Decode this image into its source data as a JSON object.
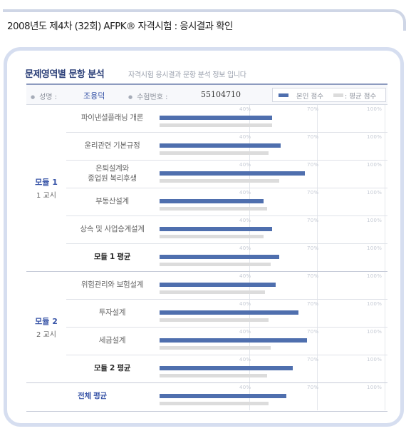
{
  "header": {
    "title": "2008년도 제4차 (32회) AFPK® 자격시험 : 응시결과 확인"
  },
  "section": {
    "title": "문제영역별 문항 분석",
    "subtitle": "자격시험 응시결과 문항 분석 정보 입니다"
  },
  "info": {
    "name_label": "성명 :",
    "name_value": "조용덕",
    "id_label": "수험번호 :",
    "id_value": "55104710",
    "legend_self": "본인 점수",
    "legend_avg": ": 평균 점수"
  },
  "colors": {
    "self_bar": "#4f6fae",
    "avg_bar": "#dcdcdc",
    "accent": "#3a56a8"
  },
  "ticks": [
    "40%",
    "70%",
    "100%"
  ],
  "modules": [
    {
      "name": "모듈 1",
      "sub": "1 교시"
    },
    {
      "name": "모듈 2",
      "sub": "2 교시"
    }
  ],
  "rows": [
    {
      "label": "파이낸셜플래닝 개론",
      "self": 0.65,
      "avg": 0.65,
      "kind": "subject"
    },
    {
      "label": "윤리관련 기본규정",
      "self": 0.7,
      "avg": 0.63,
      "kind": "subject"
    },
    {
      "label": "은퇴설계와\n종업원 복리후생",
      "self": 0.84,
      "avg": 0.69,
      "kind": "subject"
    },
    {
      "label": "부동산설계",
      "self": 0.6,
      "avg": 0.62,
      "kind": "subject"
    },
    {
      "label": "상속 및 사업승계설계",
      "self": 0.65,
      "avg": 0.6,
      "kind": "subject"
    },
    {
      "label": "모듈 1 평균",
      "self": 0.69,
      "avg": 0.64,
      "kind": "avg"
    },
    {
      "label": "위험관리와 보험설계",
      "self": 0.67,
      "avg": 0.61,
      "kind": "subject"
    },
    {
      "label": "투자설계",
      "self": 0.8,
      "avg": 0.63,
      "kind": "subject"
    },
    {
      "label": "세금설계",
      "self": 0.85,
      "avg": 0.64,
      "kind": "subject"
    },
    {
      "label": "모듈 2 평균",
      "self": 0.77,
      "avg": 0.62,
      "kind": "avg"
    },
    {
      "label": "전체 평균",
      "self": 0.73,
      "avg": 0.63,
      "kind": "total"
    }
  ]
}
